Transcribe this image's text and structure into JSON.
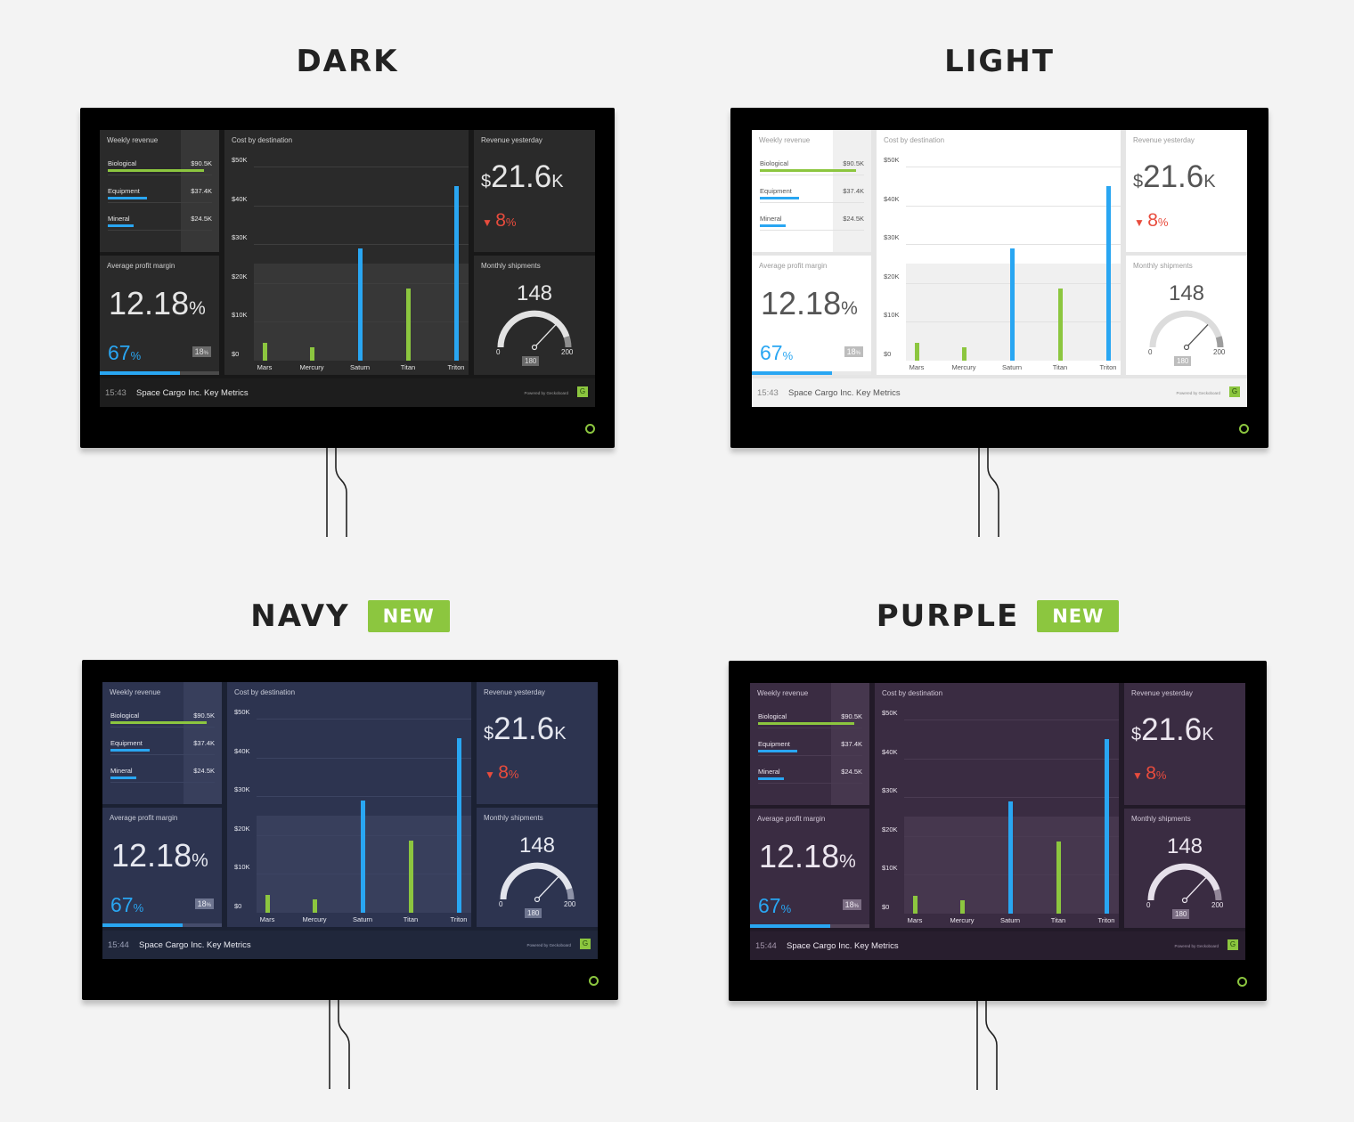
{
  "themes": [
    {
      "key": "dark",
      "name": "DARK",
      "badge": ""
    },
    {
      "key": "light",
      "name": "LIGHT",
      "badge": ""
    },
    {
      "key": "navy",
      "name": "NAVY",
      "badge": "NEW"
    },
    {
      "key": "purple",
      "name": "PURPLE",
      "badge": "NEW"
    }
  ],
  "dashboard": {
    "weekly_revenue": {
      "title": "Weekly revenue",
      "items": [
        {
          "label": "Biological",
          "value": "$90.5K",
          "bar_fraction": 1.0,
          "color": "#8cc63f"
        },
        {
          "label": "Equipment",
          "value": "$37.4K",
          "bar_fraction": 0.41,
          "color": "#29a6f2"
        },
        {
          "label": "Mineral",
          "value": "$24.5K",
          "bar_fraction": 0.27,
          "color": "#29a6f2"
        }
      ]
    },
    "cost_by_destination": {
      "title": "Cost by destination"
    },
    "revenue_yesterday": {
      "title": "Revenue yesterday",
      "currency": "$",
      "amount": "21.6",
      "suffix": "K",
      "change": "8",
      "change_unit": "%",
      "change_direction": "down"
    },
    "profit_margin": {
      "title": "Average profit margin",
      "value": "12.18",
      "unit": "%",
      "secondary": "67",
      "secondary_unit": "%",
      "comparison": "18",
      "comparison_unit": "%",
      "progress_fraction": 0.67
    },
    "monthly_shipments": {
      "title": "Monthly shipments",
      "value": "148",
      "min": "0",
      "max": "200",
      "target": "180",
      "value_number": 148,
      "target_number": 180
    }
  },
  "footers": [
    {
      "time": "15:43",
      "name": "Space Cargo Inc. Key Metrics",
      "powered": "Powered by Geckoboard",
      "logo": "G"
    },
    {
      "time": "15:43",
      "name": "Space Cargo Inc. Key Metrics",
      "powered": "Powered by Geckoboard",
      "logo": "G"
    },
    {
      "time": "15:44",
      "name": "Space Cargo Inc. Key Metrics",
      "powered": "Powered by Geckoboard",
      "logo": "G"
    },
    {
      "time": "15:44",
      "name": "Space Cargo Inc. Key Metrics",
      "powered": "Powered by Geckoboard",
      "logo": "G"
    }
  ],
  "chart_data": {
    "type": "bar",
    "title": "Cost by destination",
    "categories": [
      "Mars",
      "Mercury",
      "Saturn",
      "Titan",
      "Triton"
    ],
    "values": [
      4500,
      3500,
      29000,
      18500,
      45000
    ],
    "bar_colors": [
      "#8cc63f",
      "#8cc63f",
      "#29a6f2",
      "#8cc63f",
      "#29a6f2"
    ],
    "y_ticks": [
      "$0",
      "$10K",
      "$20K",
      "$30K",
      "$40K",
      "$50K"
    ],
    "ylim": [
      0,
      50000
    ],
    "highlight_band": [
      0,
      25000
    ],
    "grid": true
  },
  "colors": {
    "green": "#8cc63f",
    "blue": "#29a6f2",
    "red": "#e84c3d"
  }
}
